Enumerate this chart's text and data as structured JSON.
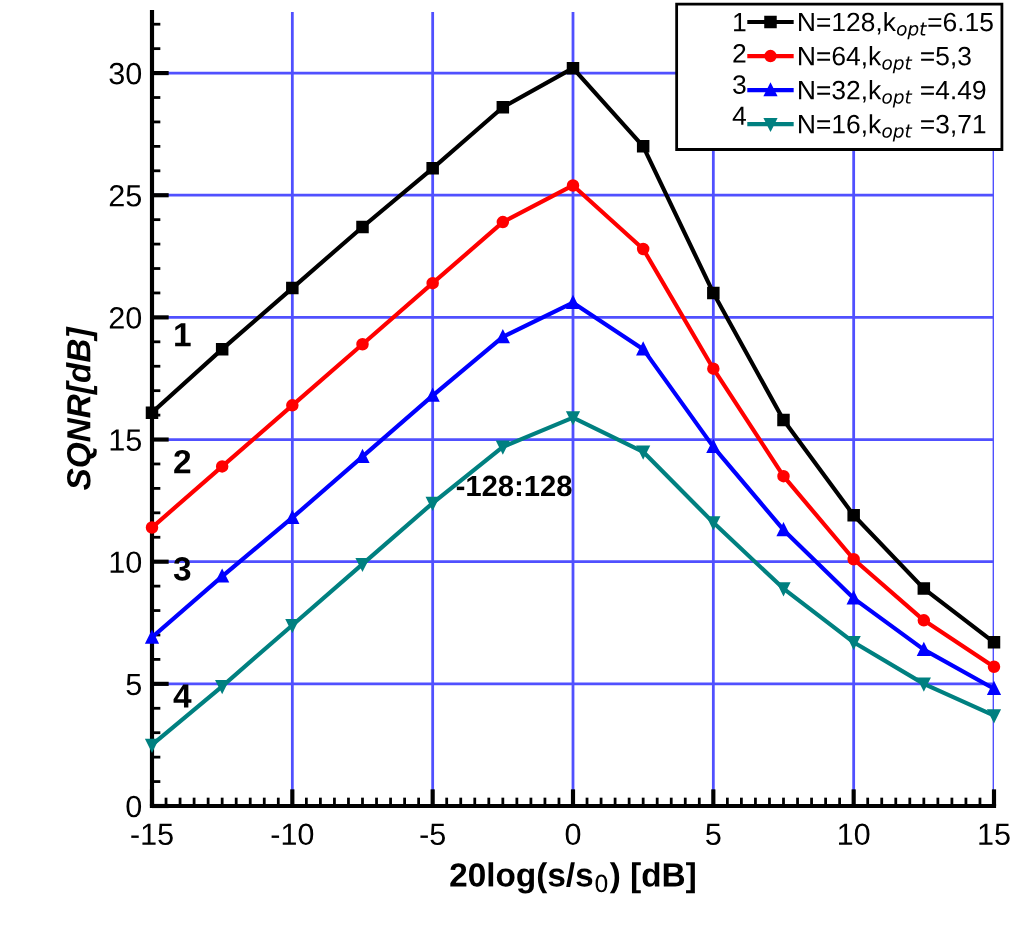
{
  "chart_data": {
    "type": "line",
    "xlabel": "20log(s/s$_{0}$) [dB]",
    "ylabel": "SQNR[dB]",
    "x": [
      -15,
      -12.5,
      -10,
      -7.5,
      -5,
      -2.5,
      0,
      2.5,
      5,
      7.5,
      10,
      12.5,
      15
    ],
    "series": [
      {
        "name": "N=128,k$_{opt}$=6.15",
        "color": "#000000",
        "marker": "square",
        "values": [
          16.1,
          18.7,
          21.2,
          23.7,
          26.1,
          28.6,
          30.2,
          27.0,
          21.0,
          15.8,
          11.9,
          8.9,
          6.7
        ]
      },
      {
        "name": "N=64,k$_{opt}$ =5,3",
        "color": "#ff0000",
        "marker": "circle",
        "values": [
          11.4,
          13.9,
          16.4,
          18.9,
          21.4,
          23.9,
          25.4,
          22.8,
          17.9,
          13.5,
          10.1,
          7.6,
          5.7
        ]
      },
      {
        "name": "N=32,k$_{opt}$ =4.49",
        "color": "#0000ff",
        "marker": "triangle",
        "values": [
          6.9,
          9.4,
          11.8,
          14.3,
          16.8,
          19.2,
          20.6,
          18.7,
          14.7,
          11.3,
          8.5,
          6.4,
          4.8
        ]
      },
      {
        "name": "N=16,k$_{opt}$ =3,71",
        "color": "#008080",
        "marker": "triangle_down",
        "values": [
          2.5,
          4.9,
          7.4,
          9.9,
          12.4,
          14.7,
          15.9,
          14.5,
          11.6,
          8.9,
          6.7,
          5.0,
          3.7
        ]
      }
    ],
    "xlim": [
      -15,
      15
    ],
    "xticks": [
      -15,
      -10,
      -5,
      0,
      5,
      10,
      15
    ],
    "ylim": [
      0,
      32.5
    ],
    "yticks": [
      0,
      5,
      10,
      15,
      20,
      25,
      30
    ],
    "grid": true,
    "legend": "top right",
    "line_style": "solid",
    "annotations": [
      "1",
      "2",
      "3",
      "4",
      "-128:128"
    ]
  }
}
